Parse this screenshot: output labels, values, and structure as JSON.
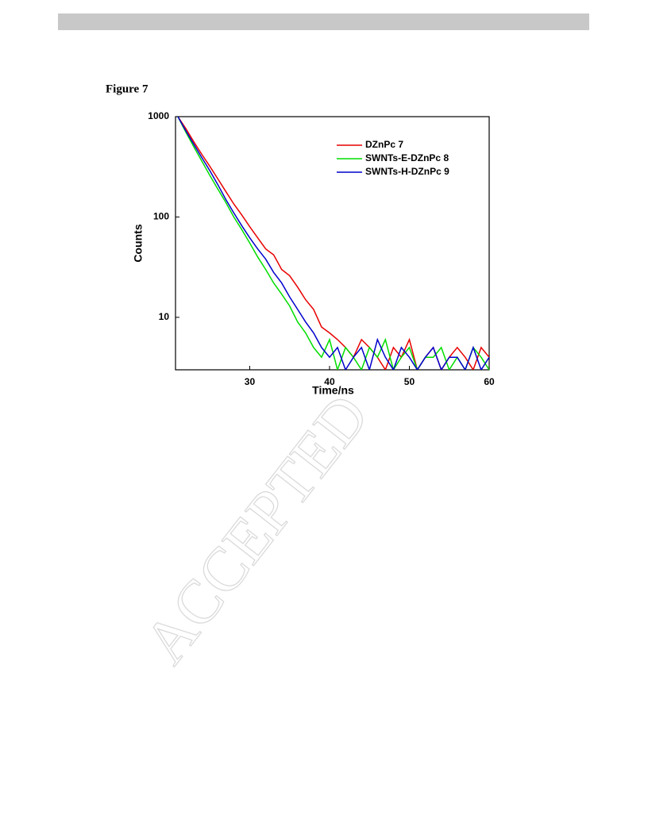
{
  "figure_label": "Figure 7",
  "watermark": "ACCEPTED",
  "chart_data": {
    "type": "line",
    "x_label": "Time/ns",
    "y_label": "Counts",
    "x": [
      21,
      22,
      23,
      24,
      25,
      26,
      27,
      28,
      29,
      30,
      31,
      32,
      33,
      34,
      35,
      36,
      37,
      38,
      39,
      40,
      41,
      42,
      43,
      44,
      45,
      46,
      47,
      48,
      49,
      50,
      51,
      52,
      53,
      54,
      55,
      56,
      57,
      58,
      59,
      60
    ],
    "series": [
      {
        "name": "DZnPc 7",
        "color": "#e80000",
        "values": [
          1000,
          760,
          560,
          420,
          320,
          240,
          180,
          135,
          105,
          80,
          62,
          48,
          42,
          30,
          26,
          20,
          15,
          12,
          8,
          7,
          6,
          5,
          4,
          6,
          5,
          4,
          3,
          5,
          4,
          6,
          3,
          4,
          5,
          3,
          4,
          5,
          4,
          3,
          5,
          4
        ]
      },
      {
        "name": "SWNTs-E-DZnPc 8",
        "color": "#00dd00",
        "values": [
          1000,
          700,
          500,
          360,
          260,
          190,
          140,
          100,
          75,
          55,
          40,
          30,
          22,
          17,
          13,
          9,
          7,
          5,
          4,
          6,
          3,
          5,
          4,
          3,
          5,
          4,
          6,
          3,
          4,
          5,
          3,
          4,
          4,
          5,
          3,
          4,
          3,
          5,
          4,
          3
        ]
      },
      {
        "name": "SWNTs-H-DZnPc 9",
        "color": "#0000cc",
        "values": [
          1000,
          720,
          530,
          390,
          290,
          210,
          150,
          110,
          82,
          62,
          48,
          38,
          28,
          22,
          16,
          12,
          9,
          7,
          5,
          4,
          5,
          3,
          4,
          5,
          3,
          6,
          4,
          3,
          5,
          4,
          3,
          4,
          5,
          3,
          4,
          4,
          3,
          5,
          3,
          4
        ]
      }
    ],
    "xlim": [
      20.7,
      60
    ],
    "xticks": [
      30,
      40,
      50,
      60
    ],
    "ylim": [
      3,
      1000
    ],
    "yticks": [
      10,
      100,
      1000
    ],
    "log_y": true,
    "grid": false,
    "legend": "upper right"
  }
}
